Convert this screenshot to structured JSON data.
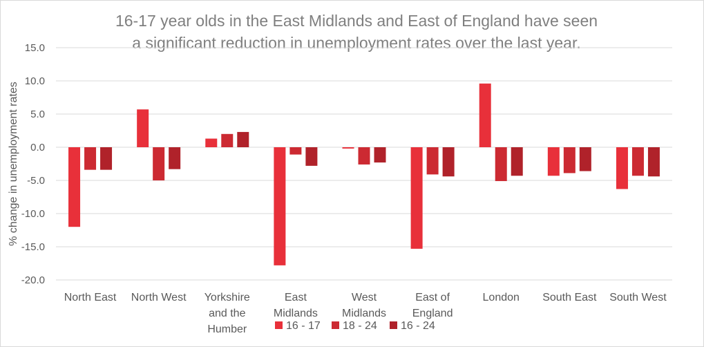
{
  "chart_data": {
    "type": "bar",
    "title_lines": [
      "16-17 year olds in the East Midlands and East of England have seen",
      "a significant reduction in unemployment rates over the last year."
    ],
    "ylabel": "% change in unemployment rates",
    "xlabel": "",
    "ylim": [
      -20,
      15
    ],
    "yticks": [
      15,
      10,
      5,
      0,
      -5,
      -10,
      -15,
      -20
    ],
    "ytick_labels": [
      "15.0",
      "10.0",
      "5.0",
      "0.0",
      "-5.0",
      "-10.0",
      "-15.0",
      "-20.0"
    ],
    "grid": true,
    "legend_position": "bottom",
    "categories": [
      [
        "North East"
      ],
      [
        "North West"
      ],
      [
        "Yorkshire",
        "and the",
        "Humber"
      ],
      [
        "East",
        "Midlands"
      ],
      [
        "West",
        "Midlands"
      ],
      [
        "East of",
        "England"
      ],
      [
        "London"
      ],
      [
        "South East"
      ],
      [
        "South West"
      ]
    ],
    "series": [
      {
        "name": "16 - 17",
        "color": "#e8303a",
        "values": [
          -12.0,
          5.7,
          1.3,
          -17.8,
          -0.2,
          -15.3,
          9.6,
          -4.3,
          -6.3
        ]
      },
      {
        "name": "18 - 24",
        "color": "#cc2a32",
        "values": [
          -3.4,
          -5.0,
          2.0,
          -1.1,
          -2.6,
          -4.1,
          -5.1,
          -3.9,
          -4.3
        ]
      },
      {
        "name": "16 - 24",
        "color": "#b0222a",
        "values": [
          -3.4,
          -3.3,
          2.3,
          -2.8,
          -2.3,
          -4.4,
          -4.3,
          -3.6,
          -4.4
        ]
      }
    ],
    "colors": {
      "grid": "#d9d9d9",
      "text": "#595959",
      "title": "#7f7f7f"
    }
  }
}
